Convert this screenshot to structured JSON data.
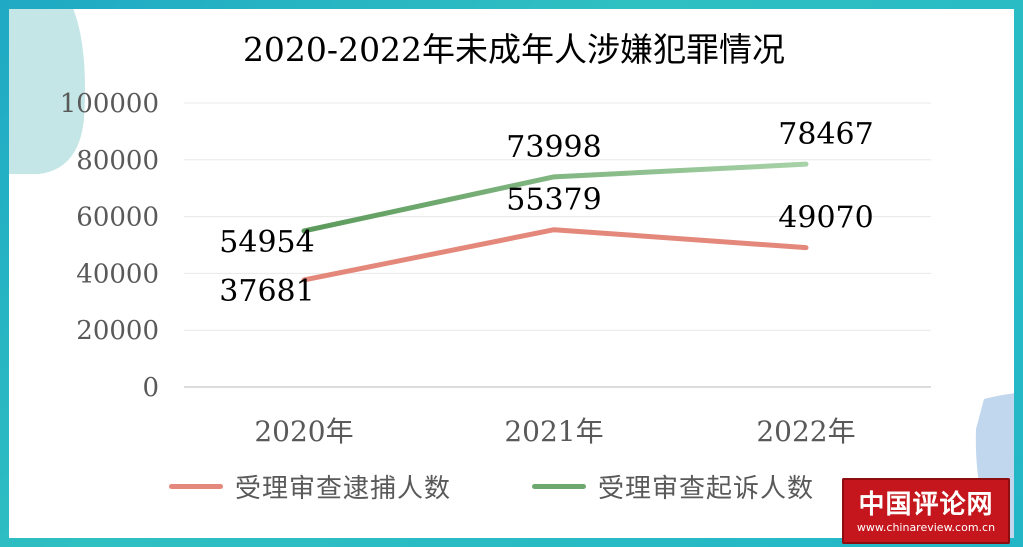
{
  "colors": {
    "frame": "#27b3bf",
    "series_arrest": "#e3887b",
    "series_prosecute_start": "#5b9a5b",
    "series_prosecute_end": "#a8d2a8",
    "grid": "#e8e8e8",
    "axis_text": "#595959",
    "label_text": "#000000"
  },
  "watermark": {
    "logo_text": "中国评论网",
    "url": "www.chinareview.com.cn"
  },
  "chart_data": {
    "type": "line",
    "title": "2020-2022年未成年人涉嫌犯罪情况",
    "categories": [
      "2020年",
      "2021年",
      "2022年"
    ],
    "ylim": [
      0,
      100000
    ],
    "yticks": [
      0,
      20000,
      40000,
      60000,
      80000,
      100000
    ],
    "grid": true,
    "legend_position": "bottom",
    "series": [
      {
        "name": "受理审查逮捕人数",
        "values": [
          37681,
          55379,
          49070
        ],
        "color": "#e3887b"
      },
      {
        "name": "受理审查起诉人数",
        "values": [
          54954,
          73998,
          78467
        ],
        "color": "#6fa86f"
      }
    ]
  }
}
